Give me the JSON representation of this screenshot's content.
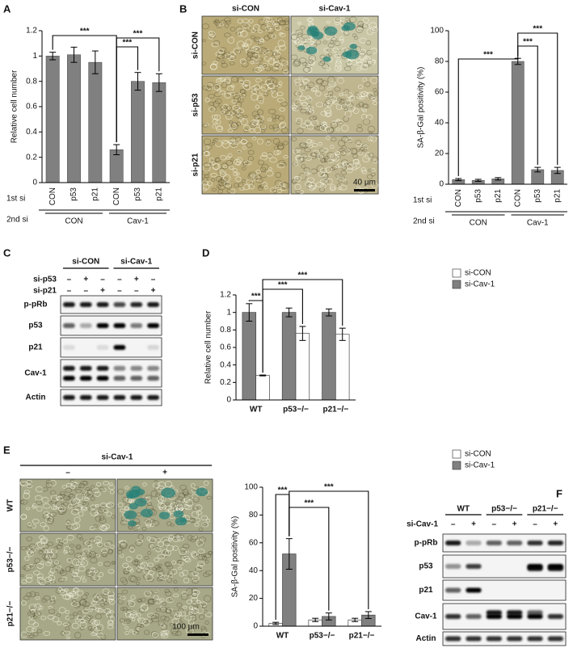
{
  "panel_labels": [
    "A",
    "B",
    "C",
    "D",
    "E",
    "F"
  ],
  "chart_data": [
    {
      "type": "bar",
      "ylabel": "Relative cell number",
      "categories": [
        "CON",
        "p53",
        "p21",
        "CON",
        "p53",
        "p21"
      ],
      "values": [
        1.0,
        1.01,
        0.95,
        0.26,
        0.8,
        0.79
      ],
      "errors": [
        0.03,
        0.06,
        0.09,
        0.04,
        0.07,
        0.07
      ],
      "color": "#808080",
      "ylim": [
        0,
        1.2
      ],
      "yticks": [
        0,
        0.2,
        0.4,
        0.6,
        0.8,
        1,
        1.2
      ],
      "row_labels": [
        "1st si",
        "2nd si"
      ],
      "groups": [
        "CON",
        "Cav-1"
      ],
      "annotations": [
        "***",
        "***",
        "***"
      ]
    },
    {
      "type": "bar",
      "ylabel": "SA-β-Gal positivity (%)",
      "categories": [
        "CON",
        "p53",
        "p21",
        "CON",
        "p53",
        "p21"
      ],
      "values": [
        3,
        2.5,
        3.5,
        80,
        9.5,
        9
      ],
      "errors": [
        0.7,
        0.7,
        0.8,
        2,
        1.5,
        2
      ],
      "color": "#808080",
      "ylim": [
        0,
        100
      ],
      "yticks": [
        0,
        20,
        40,
        60,
        80,
        100
      ],
      "row_labels": [
        "1st si",
        "2nd si"
      ],
      "groups": [
        "CON",
        "Cav-1"
      ],
      "annotations": [
        "***",
        "***",
        "***"
      ]
    },
    {
      "type": "grouped_bar",
      "ylabel": "Relative cell number",
      "categories": [
        "WT",
        "p53−/−",
        "p21−/−"
      ],
      "series": [
        {
          "name": "si-CON",
          "color": "#ffffff",
          "values": [
            0.28,
            0.76,
            0.75
          ],
          "errors": [
            0.005,
            0.08,
            0.07
          ]
        },
        {
          "name": "si-Cav-1",
          "color": "#808080",
          "values": [
            1.0,
            1.0,
            1.0
          ],
          "errors": [
            0.1,
            0.05,
            0.04
          ]
        }
      ],
      "ylim": [
        0,
        1.2
      ],
      "yticks": [
        0,
        0.2,
        0.4,
        0.6,
        0.8,
        1,
        1.2
      ],
      "annotations": [
        "***",
        "***",
        "***"
      ]
    },
    {
      "type": "grouped_bar",
      "ylabel": "SA-β-Gal positivity (%)",
      "categories": [
        "WT",
        "p53−/−",
        "p21−/−"
      ],
      "series": [
        {
          "name": "si-CON",
          "color": "#ffffff",
          "values": [
            2,
            4.5,
            4.5
          ],
          "errors": [
            0.8,
            1.2,
            1.2
          ]
        },
        {
          "name": "si-Cav-1",
          "color": "#808080",
          "values": [
            52,
            7,
            8
          ],
          "errors": [
            11,
            2.5,
            2.5
          ]
        }
      ],
      "ylim": [
        0,
        100
      ],
      "yticks": [
        0,
        20,
        40,
        60,
        80,
        100
      ],
      "annotations": [
        "***",
        "***",
        "***"
      ]
    }
  ],
  "panel_b_images": {
    "columns": [
      "si-CON",
      "si-Cav-1"
    ],
    "rows": [
      "si-CON",
      "si-p53",
      "si-p21"
    ],
    "scale_bar": "40 µm"
  },
  "panel_c_blot": {
    "groups": [
      "si-CON",
      "si-Cav-1"
    ],
    "conditions": [
      {
        "label": "si-p53",
        "lanes": [
          "–",
          "+",
          "–",
          "–",
          "+",
          "–"
        ]
      },
      {
        "label": "si-p21",
        "lanes": [
          "–",
          "–",
          "+",
          "–",
          "–",
          "+"
        ]
      }
    ],
    "proteins": [
      "p-pRb",
      "p53",
      "p21",
      "Cav-1",
      "Actin"
    ]
  },
  "panel_e_images": {
    "header": "si-Cav-1",
    "columns": [
      "–",
      "+"
    ],
    "rows": [
      "WT",
      "p53−/−",
      "p21−/−"
    ],
    "scale_bar": "100 µm"
  },
  "panel_f_blot": {
    "groups": [
      "WT",
      "p53−/−",
      "p21−/−"
    ],
    "condition": {
      "label": "si-Cav-1",
      "lanes": [
        "–",
        "+",
        "–",
        "+",
        "–",
        "+"
      ]
    },
    "proteins": [
      "p-pRb",
      "p53",
      "p21",
      "Cav-1",
      "Actin"
    ]
  }
}
